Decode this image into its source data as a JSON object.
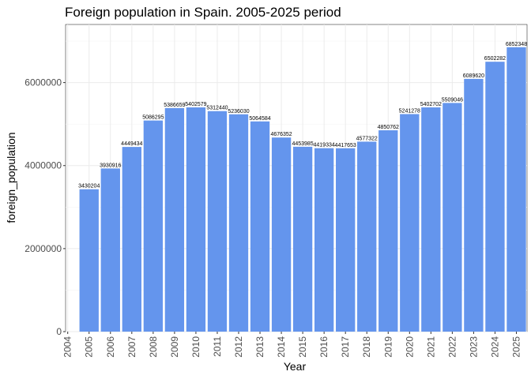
{
  "chart_data": {
    "type": "bar",
    "title": "Foreign population in Spain. 2005-2025 period",
    "xlabel": "Year",
    "ylabel": "foreign_population",
    "categories": [
      "2005",
      "2006",
      "2007",
      "2008",
      "2009",
      "2010",
      "2011",
      "2012",
      "2013",
      "2014",
      "2015",
      "2016",
      "2017",
      "2018",
      "2019",
      "2020",
      "2021",
      "2022",
      "2023",
      "2024",
      "2025"
    ],
    "values": [
      3430204,
      3930916,
      4449434,
      5086295,
      5386659,
      5402579,
      5312440,
      5236030,
      5064584,
      4676352,
      4453985,
      4419334,
      4417653,
      4577322,
      4850762,
      5241278,
      5402702,
      5509046,
      6089620,
      6502282,
      6852348
    ],
    "data_labels": [
      "3430204",
      "3930916",
      "4449434",
      "5086295",
      "5386659",
      "5402579",
      "5312440",
      "5236030",
      "5064584",
      "4676352",
      "4453985",
      "4419334",
      "4417653",
      "4577322",
      "4850762",
      "5241278",
      "5402702",
      "5509046",
      "6089620",
      "6502282",
      "6852348"
    ],
    "x_ticks": [
      "2004",
      "2005",
      "2006",
      "2007",
      "2008",
      "2009",
      "2010",
      "2011",
      "2012",
      "2013",
      "2014",
      "2015",
      "2016",
      "2017",
      "2018",
      "2019",
      "2020",
      "2021",
      "2022",
      "2023",
      "2024",
      "2025"
    ],
    "y_ticks": [
      0,
      2000000,
      4000000,
      6000000
    ],
    "y_tick_labels": [
      "0",
      "2000000",
      "4000000",
      "6000000"
    ],
    "xlim": [
      2003.9,
      2025.5
    ],
    "ylim": [
      0,
      7400000
    ],
    "grid": true,
    "legend": "none",
    "colors": {
      "bar": "#6495ED",
      "panel": "#ffffff",
      "grid_major": "#ebebeb",
      "grid_minor": "#f5f5f5",
      "panel_border": "#333333"
    }
  }
}
